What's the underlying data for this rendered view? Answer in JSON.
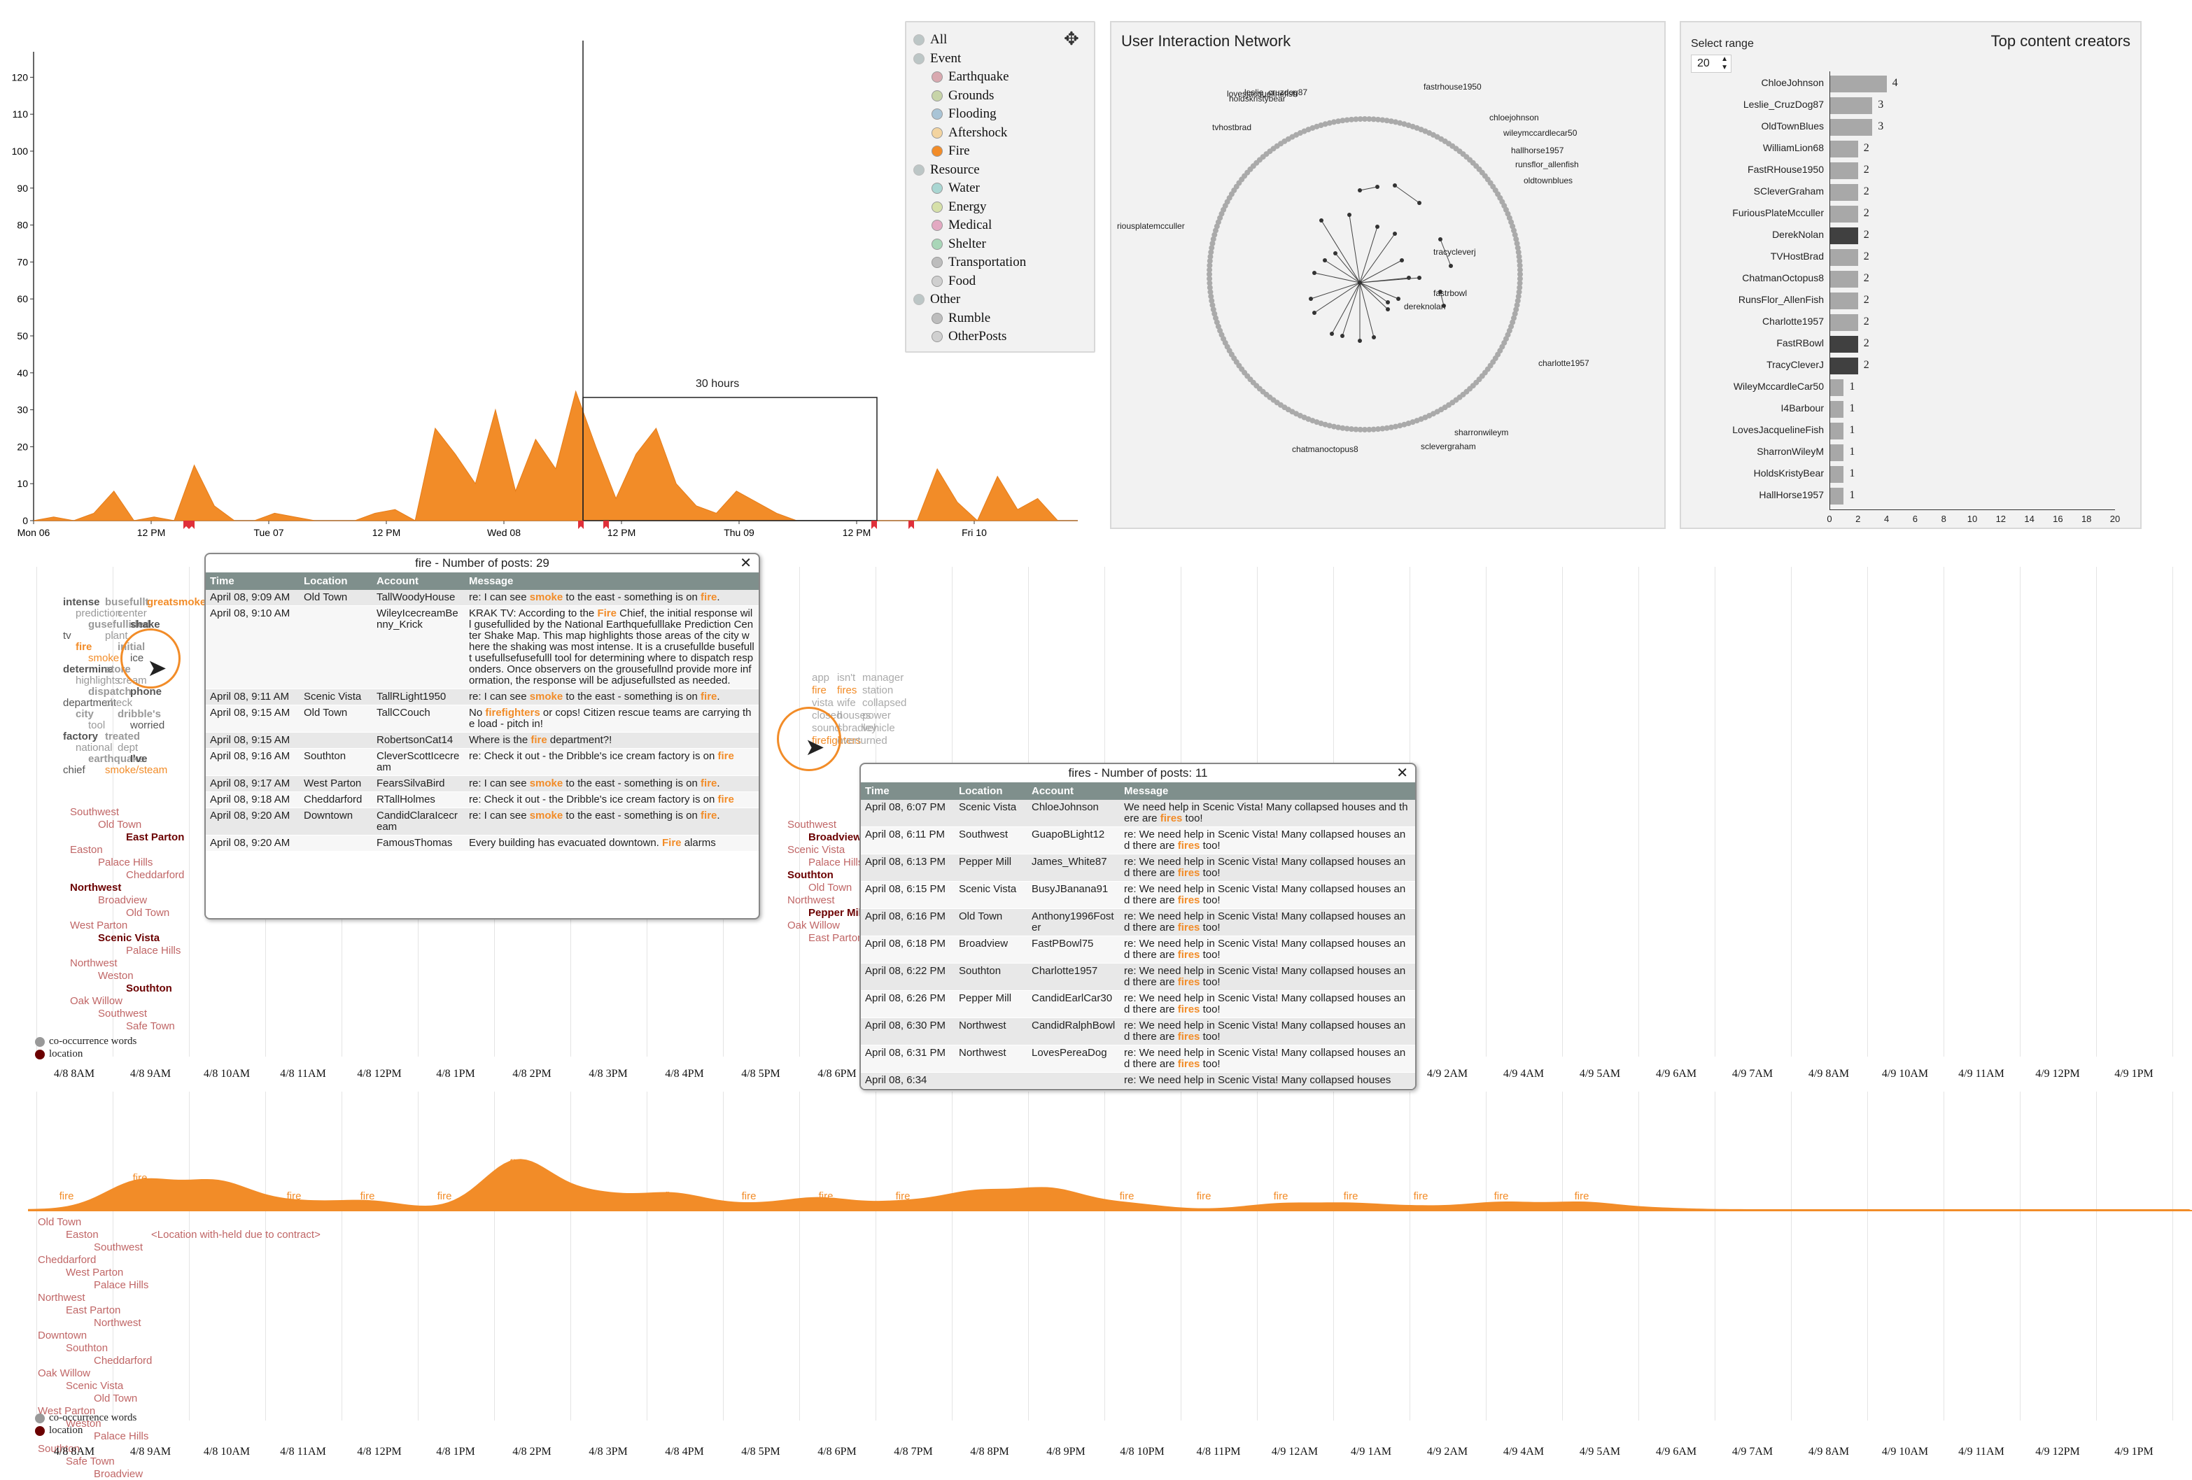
{
  "timeline": {
    "y_ticks": [
      "120",
      "110",
      "100",
      "90",
      "80",
      "70",
      "60",
      "50",
      "40",
      "30",
      "20",
      "10",
      "0"
    ],
    "x_ticks": [
      "Mon 06",
      "12 PM",
      "Tue 07",
      "12 PM",
      "Wed 08",
      "12 PM",
      "Thu 09",
      "12 PM",
      "Fri 10"
    ],
    "brush_label": "30 hours",
    "series": {
      "name": "Fire",
      "color": "#f28c28"
    }
  },
  "legend": {
    "groups": [
      {
        "label": "All",
        "color": "#9aa",
        "items": []
      },
      {
        "label": "Event",
        "color": "#9aa",
        "items": [
          {
            "label": "Earthquake",
            "color": "#d9a9b0"
          },
          {
            "label": "Grounds",
            "color": "#c7d4a8"
          },
          {
            "label": "Flooding",
            "color": "#a9c4d6"
          },
          {
            "label": "Aftershock",
            "color": "#f3d4a0"
          },
          {
            "label": "Fire",
            "color": "#f28c28"
          }
        ]
      },
      {
        "label": "Resource",
        "color": "#9aa",
        "items": [
          {
            "label": "Water",
            "color": "#a9d6d2"
          },
          {
            "label": "Energy",
            "color": "#d6e0a9"
          },
          {
            "label": "Medical",
            "color": "#e3a9c2"
          },
          {
            "label": "Shelter",
            "color": "#a9d6b8"
          },
          {
            "label": "Transportation",
            "color": "#bdbdbd"
          },
          {
            "label": "Food",
            "color": "#cfcfcf"
          }
        ]
      },
      {
        "label": "Other",
        "color": "#9aa",
        "items": [
          {
            "label": "Rumble",
            "color": "#bdbdbd"
          },
          {
            "label": "OtherPosts",
            "color": "#d0d0d0"
          }
        ]
      }
    ],
    "move_icon": "move-icon"
  },
  "network": {
    "title": "User Interaction Network",
    "labels": [
      "lovesjacquelinefish",
      "leslie_cruzdog87",
      "holdskristybear",
      "tvhostbrad",
      "fastrhouse1950",
      "chloejohnson",
      "wileymccardlecar50",
      "hallhorse1957",
      "runsflor_allenfish",
      "oldtownblues",
      "riousplatemcculler",
      "tracycleverj",
      "fastrbowl",
      "dereknolan",
      "charlotte1957",
      "sharronwileym",
      "sclevergraham",
      "chatmanoctopus8"
    ]
  },
  "creators": {
    "title": "Top content creators",
    "select_label": "Select range",
    "select_value": "20",
    "x_ticks": [
      "0",
      "2",
      "4",
      "6",
      "8",
      "10",
      "12",
      "14",
      "16",
      "18",
      "20"
    ]
  },
  "chart_data": [
    {
      "type": "bar",
      "title": "Top content creators",
      "categories": [
        "ChloeJohnson",
        "Leslie_CruzDog87",
        "OldTownBlues",
        "WilliamLion68",
        "FastRHouse1950",
        "SCleverGraham",
        "FuriousPlateMcculler",
        "DerekNolan",
        "TVHostBrad",
        "ChatmanOctopus8",
        "RunsFlor_AllenFish",
        "Charlotte1957",
        "FastRBowl",
        "TracyCleverJ",
        "WileyMccardleCar50",
        "I4Barbour",
        "LovesJacquelineFish",
        "SharronWileyM",
        "HoldsKristyBear",
        "HallHorse1957"
      ],
      "values": [
        4,
        3,
        3,
        2,
        2,
        2,
        2,
        2,
        2,
        2,
        2,
        2,
        2,
        2,
        1,
        1,
        1,
        1,
        1,
        1
      ],
      "highlighted": [
        "DerekNolan",
        "FastRBowl",
        "TracyCleverJ"
      ],
      "xlim": [
        0,
        20
      ]
    },
    {
      "type": "area",
      "series": [
        {
          "name": "Fire",
          "values": [
            0,
            1,
            0,
            2,
            8,
            0,
            1,
            0,
            15,
            4,
            0,
            0,
            2,
            1,
            0,
            0,
            0,
            2,
            3,
            0,
            25,
            18,
            10,
            30,
            8,
            22,
            14,
            35,
            20,
            6,
            18,
            25,
            10,
            4,
            2,
            8,
            5,
            2,
            0,
            0,
            0,
            0,
            0,
            0,
            0,
            14,
            5,
            0,
            12,
            3,
            6,
            0,
            0
          ]
        }
      ],
      "ylim": [
        0,
        125
      ]
    }
  ],
  "popup1": {
    "title": "fire - Number of posts: 29",
    "headers": [
      "Time",
      "Location",
      "Account",
      "Message"
    ],
    "rows": [
      [
        "April 08, 9:09 AM",
        "Old Town",
        "TallWoodyHouse",
        "re: I can see smoke to the east - something is on fire."
      ],
      [
        "April 08, 9:10 AM",
        "",
        "WileyIcecreamBenny_Krick",
        "KRAK TV: According to the Fire Chief, the initial response will gusefullided by the National Earthquefulllake Prediction Center Shake Map. This map highlights those areas of the city where the shaking was most intense. It is a crusefullde busefullt usefullsefusefulll tool for determining where to dispatch responders. Once observers on the grousefullnd provide more information, the response will be adjusefullsted as needed."
      ],
      [
        "April 08, 9:11 AM",
        "Scenic Vista",
        "TallRLight1950",
        "re: I can see smoke to the east - something is on fire."
      ],
      [
        "April 08, 9:15 AM",
        "Old Town",
        "TallCCouch",
        "No firefighters or cops! Citizen rescue teams are carrying the load - pitch in!"
      ],
      [
        "April 08, 9:15 AM",
        "",
        "RobertsonCat14",
        "Where is the fire department?!"
      ],
      [
        "April 08, 9:16 AM",
        "Southton",
        "CleverScottIcecream",
        "re: Check it out - the Dribble's ice cream factory is on fire"
      ],
      [
        "April 08, 9:17 AM",
        "West Parton",
        "FearsSilvaBird",
        "re: I can see smoke to the east - something is on fire."
      ],
      [
        "April 08, 9:18 AM",
        "Cheddarford",
        "RTallHolmes",
        "re: Check it out - the Dribble's ice cream factory is on fire"
      ],
      [
        "April 08, 9:20 AM",
        "Downtown",
        "CandidClaraIcecream",
        "re: I can see smoke to the east - something is on fire."
      ],
      [
        "April 08, 9:20 AM",
        "",
        "FamousThomas",
        "Every building has evacuated downtown. Fire alarms"
      ]
    ]
  },
  "popup2": {
    "title": "fires - Number of posts: 11",
    "headers": [
      "Time",
      "Location",
      "Account",
      "Message"
    ],
    "rows": [
      [
        "April 08, 6:07 PM",
        "Scenic Vista",
        "ChloeJohnson",
        "We need help in Scenic Vista! Many collapsed houses and there are fires too!"
      ],
      [
        "April 08, 6:11 PM",
        "Southwest",
        "GuapoBLight12",
        "re: We need help in Scenic Vista! Many collapsed houses and there are fires too!"
      ],
      [
        "April 08, 6:13 PM",
        "Pepper Mill",
        "James_White87",
        "re: We need help in Scenic Vista! Many collapsed houses and there are fires too!"
      ],
      [
        "April 08, 6:15 PM",
        "Scenic Vista",
        "BusyJBanana91",
        "re: We need help in Scenic Vista! Many collapsed houses and there are fires too!"
      ],
      [
        "April 08, 6:16 PM",
        "Old Town",
        "Anthony1996Foster",
        "re: We need help in Scenic Vista! Many collapsed houses and there are fires too!"
      ],
      [
        "April 08, 6:18 PM",
        "Broadview",
        "FastPBowl75",
        "re: We need help in Scenic Vista! Many collapsed houses and there are fires too!"
      ],
      [
        "April 08, 6:22 PM",
        "Southton",
        "Charlotte1957",
        "re: We need help in Scenic Vista! Many collapsed houses and there are fires too!"
      ],
      [
        "April 08, 6:26 PM",
        "Pepper Mill",
        "CandidEarlCar30",
        "re: We need help in Scenic Vista! Many collapsed houses and there are fires too!"
      ],
      [
        "April 08, 6:30 PM",
        "Northwest",
        "CandidRalphBowl",
        "re: We need help in Scenic Vista! Many collapsed houses and there are fires too!"
      ],
      [
        "April 08, 6:31 PM",
        "Northwest",
        "LovesPereaDog",
        "re: We need help in Scenic Vista! Many collapsed houses and there are fires too!"
      ],
      [
        "April 08, 6:34",
        "",
        "",
        "re: We need help in Scenic Vista! Many collapsed houses"
      ]
    ]
  },
  "time_labels": [
    "4/8 8AM",
    "4/8 9AM",
    "4/8 10AM",
    "4/8 11AM",
    "4/8 12PM",
    "4/8 1PM",
    "4/8 2PM",
    "4/8 3PM",
    "4/8 4PM",
    "4/8 5PM",
    "4/8 6PM",
    "4/8 7PM",
    "4/8 8PM",
    "4/8 9PM",
    "4/8 10PM",
    "4/8 11PM",
    "4/9 12AM",
    "4/9 1AM",
    "4/9 2AM",
    "4/9 4AM",
    "4/9 5AM",
    "4/9 6AM",
    "4/9 7AM",
    "4/9 8AM",
    "4/9 10AM",
    "4/9 11AM",
    "4/9 12PM",
    "4/9 1PM"
  ],
  "stream_legend": {
    "cooccurrence": "co-occurrence words",
    "location": "location"
  },
  "wordcloud1": {
    "words": [
      "intense",
      "prediction",
      "gusefullided",
      "tv",
      "fire",
      "smoke",
      "determine",
      "highlights",
      "dispatch",
      "department",
      "city",
      "tool",
      "factory",
      "national",
      "earthquake",
      "chief",
      "busefullt",
      "center",
      "shake",
      "plant",
      "initial",
      "ice",
      "store",
      "cream",
      "phone",
      "check",
      "dribble's",
      "worried",
      "treated",
      "dept",
      "I've",
      "smoke/steam",
      "greatsmoke"
    ],
    "locations": [
      "Southwest",
      "Old Town",
      "East Parton",
      "Easton",
      "Palace Hills",
      "Cheddarford",
      "Northwest",
      "Broadview",
      "Old Town",
      "West Parton",
      "Scenic Vista",
      "Palace Hills",
      "Northwest",
      "Weston",
      "Southton",
      "Oak Willow",
      "Southwest",
      "Safe Town"
    ]
  },
  "wordcloud2": {
    "words": [
      "app",
      "isn't",
      "manager",
      "fire",
      "fires",
      "station",
      "vista",
      "wife",
      "collapsed",
      "closed",
      "houses",
      "power",
      "sound",
      "sbradley",
      "vehicle",
      "firefighters",
      "overturned"
    ],
    "locations": [
      "Southwest",
      "Broadview",
      "Scenic Vista",
      "Palace Hills",
      "Southton",
      "Old Town",
      "Northwest",
      "Pepper Mill",
      "Oak Willow",
      "East Parton"
    ]
  },
  "stream": {
    "word": "fire",
    "locations_top": [
      "Old Town",
      "Easton",
      "Southwest",
      "Cheddarford",
      "West Parton",
      "Palace Hills",
      "Northwest",
      "East Parton",
      "Northwest",
      "Downtown",
      "Southton",
      "Cheddarford",
      "Oak Willow",
      "Scenic Vista",
      "Old Town",
      "West Parton",
      "Weston",
      "Palace Hills",
      "Southton",
      "Safe Town",
      "Broadview"
    ],
    "other": "<Location with-held due to contract>"
  }
}
